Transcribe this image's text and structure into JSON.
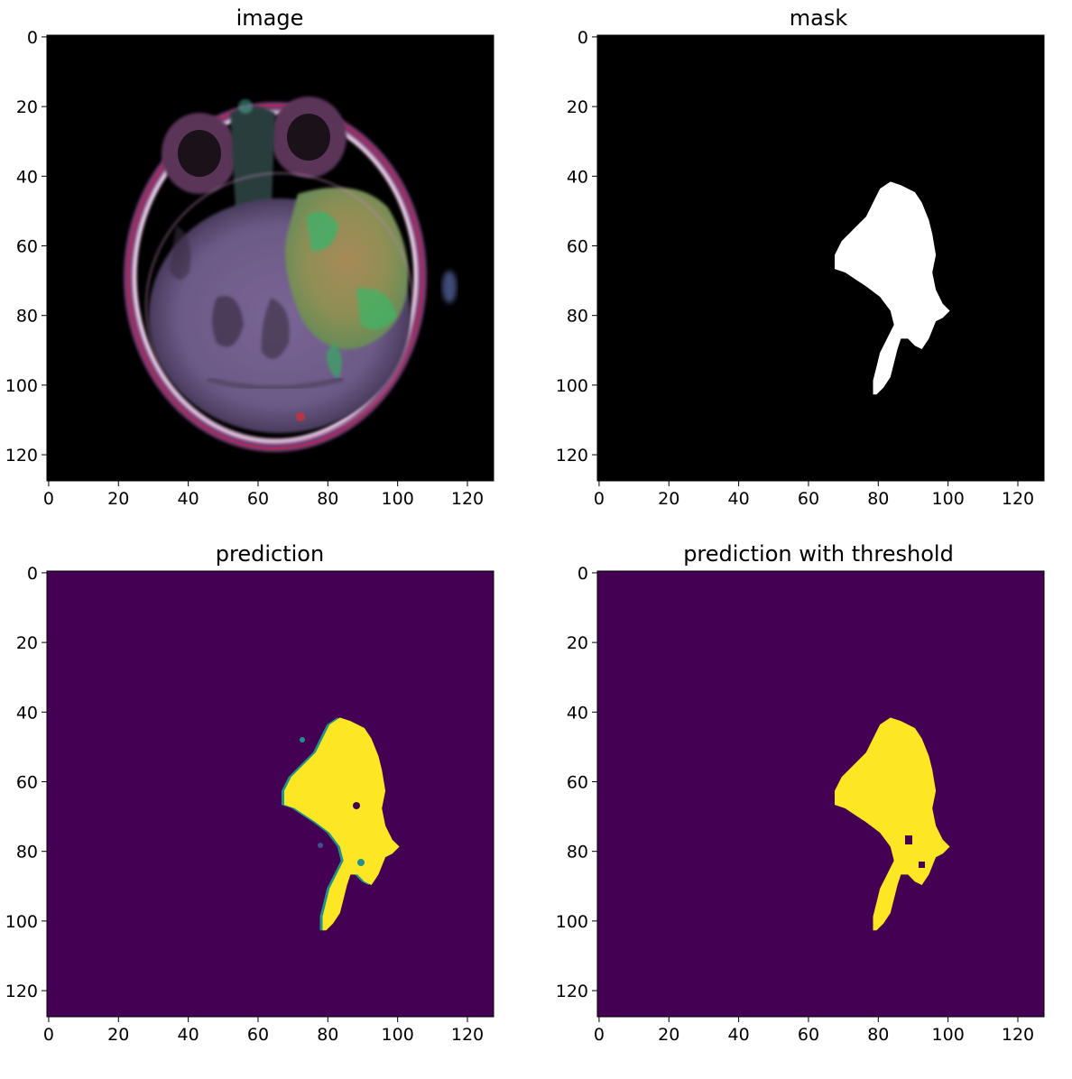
{
  "figure": {
    "panels": [
      {
        "id": "image",
        "title": "image",
        "kind": "rgb-mri-axial-slice",
        "x_ticks": [
          "0",
          "20",
          "40",
          "60",
          "80",
          "100",
          "120"
        ],
        "y_ticks": [
          "0",
          "20",
          "40",
          "60",
          "80",
          "100",
          "120"
        ]
      },
      {
        "id": "mask",
        "title": "mask",
        "kind": "binary-mask",
        "colors": {
          "background": "#000000",
          "foreground": "#ffffff"
        },
        "x_ticks": [
          "0",
          "20",
          "40",
          "60",
          "80",
          "100",
          "120"
        ],
        "y_ticks": [
          "0",
          "20",
          "40",
          "60",
          "80",
          "100",
          "120"
        ]
      },
      {
        "id": "prediction",
        "title": "prediction",
        "kind": "viridis-probability-map",
        "colors": {
          "background": "#440154",
          "foreground": "#fde725",
          "edge": "#21918c"
        },
        "x_ticks": [
          "0",
          "20",
          "40",
          "60",
          "80",
          "100",
          "120"
        ],
        "y_ticks": [
          "0",
          "20",
          "40",
          "60",
          "80",
          "100",
          "120"
        ]
      },
      {
        "id": "prediction_threshold",
        "title": "prediction with threshold",
        "kind": "viridis-binary-map",
        "colors": {
          "background": "#440154",
          "foreground": "#fde725"
        },
        "x_ticks": [
          "0",
          "20",
          "40",
          "60",
          "80",
          "100",
          "120"
        ],
        "y_ticks": [
          "0",
          "20",
          "40",
          "60",
          "80",
          "100",
          "120"
        ]
      }
    ],
    "axis_range": [
      0,
      128
    ],
    "tumor_outline_data_units": [
      [
        84,
        42
      ],
      [
        87,
        43
      ],
      [
        91,
        45
      ],
      [
        93,
        48
      ],
      [
        95,
        53
      ],
      [
        96,
        57
      ],
      [
        97,
        63
      ],
      [
        96,
        68
      ],
      [
        97,
        73
      ],
      [
        99,
        77
      ],
      [
        101,
        79
      ],
      [
        99,
        81
      ],
      [
        97,
        82
      ],
      [
        95,
        87
      ],
      [
        93,
        90
      ],
      [
        91,
        89
      ],
      [
        89,
        87
      ],
      [
        87,
        87
      ],
      [
        86,
        90
      ],
      [
        85,
        94
      ],
      [
        84,
        98
      ],
      [
        82,
        101
      ],
      [
        80,
        103
      ],
      [
        79,
        103
      ],
      [
        79,
        99
      ],
      [
        80,
        95
      ],
      [
        81,
        91
      ],
      [
        83,
        87
      ],
      [
        85,
        83
      ],
      [
        84,
        79
      ],
      [
        81,
        75
      ],
      [
        77,
        72
      ],
      [
        74,
        70
      ],
      [
        71,
        68
      ],
      [
        68,
        67
      ],
      [
        68,
        63
      ],
      [
        70,
        59
      ],
      [
        73,
        56
      ],
      [
        77,
        52
      ],
      [
        79,
        48
      ],
      [
        81,
        44
      ]
    ]
  }
}
